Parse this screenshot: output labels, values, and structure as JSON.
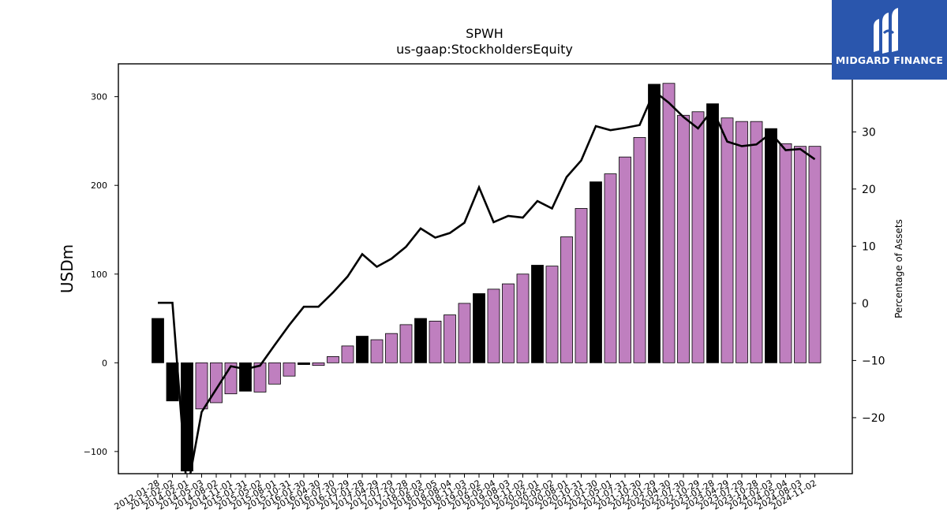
{
  "chart_data": {
    "type": "bar",
    "title": "SPWH",
    "subtitle": "us-gaap:StockholdersEquity",
    "ylabel": "USDm",
    "y2label": "Percentage of Assets",
    "ylim": [
      -125,
      337
    ],
    "y2lim": [
      -29.8,
      41.9
    ],
    "yticks": [
      -100,
      0,
      100,
      200,
      300
    ],
    "y2ticks": [
      -20,
      -10,
      0,
      10,
      20,
      30
    ],
    "grid": false,
    "legend": "none",
    "categories": [
      "2012-01-28",
      "2013-02-02",
      "2014-02-01",
      "2014-05-03",
      "2014-08-02",
      "2014-11-01",
      "2015-01-31",
      "2015-05-02",
      "2015-08-01",
      "2015-10-31",
      "2016-01-30",
      "2016-04-30",
      "2016-07-30",
      "2016-10-29",
      "2017-01-28",
      "2017-04-29",
      "2017-07-29",
      "2017-10-28",
      "2018-02-03",
      "2018-05-05",
      "2018-08-04",
      "2018-11-03",
      "2019-02-02",
      "2019-05-04",
      "2019-08-03",
      "2019-11-02",
      "2020-02-01",
      "2020-05-02",
      "2020-08-01",
      "2020-10-31",
      "2021-01-30",
      "2021-05-01",
      "2021-07-31",
      "2021-10-30",
      "2022-01-29",
      "2022-04-30",
      "2022-07-30",
      "2022-10-29",
      "2023-01-28",
      "2023-04-29",
      "2023-07-29",
      "2023-10-28",
      "2024-02-03",
      "2024-05-04",
      "2024-08-03",
      "2024-11-02"
    ],
    "series": [
      {
        "values": [
          50,
          -43,
          -122,
          -52,
          -45,
          -35,
          -32,
          -33,
          -24,
          -15,
          -2,
          -3,
          7,
          19,
          30,
          26,
          33,
          43,
          50,
          47,
          54,
          67,
          78,
          83,
          89,
          100,
          110,
          109,
          142,
          174,
          204,
          213,
          232,
          254,
          314,
          315,
          279,
          283,
          292,
          276,
          272,
          272,
          264,
          247,
          244,
          244
        ],
        "annual": [
          true,
          true,
          true,
          false,
          false,
          false,
          true,
          false,
          false,
          false,
          true,
          false,
          false,
          false,
          true,
          false,
          false,
          false,
          true,
          false,
          false,
          false,
          true,
          false,
          false,
          false,
          true,
          false,
          false,
          false,
          true,
          false,
          false,
          false,
          true,
          false,
          false,
          false,
          true,
          false,
          false,
          false,
          true,
          false,
          false,
          false
        ]
      },
      {
        "axis": "right",
        "values": [
          0.1,
          0.1,
          -33,
          -19,
          -15,
          -11,
          -11.5,
          -10.9,
          -7.3,
          -3.8,
          -0.6,
          -0.6,
          1.9,
          4.7,
          8.6,
          6.4,
          7.8,
          9.9,
          13.1,
          11.5,
          12.3,
          14.1,
          20.3,
          14.2,
          15.3,
          15.0,
          17.9,
          16.6,
          22.1,
          25.0,
          31.0,
          30.3,
          30.7,
          31.2,
          37.1,
          35.1,
          32.6,
          30.6,
          33.9,
          28.3,
          27.5,
          27.8,
          29.8,
          26.8,
          27.0,
          25.2
        ]
      }
    ],
    "colors": {
      "annual": "#000000",
      "quarterly": "#bf7fbf",
      "line": "#000000"
    }
  },
  "logo": {
    "text": "MIDGARD FINANCE"
  }
}
